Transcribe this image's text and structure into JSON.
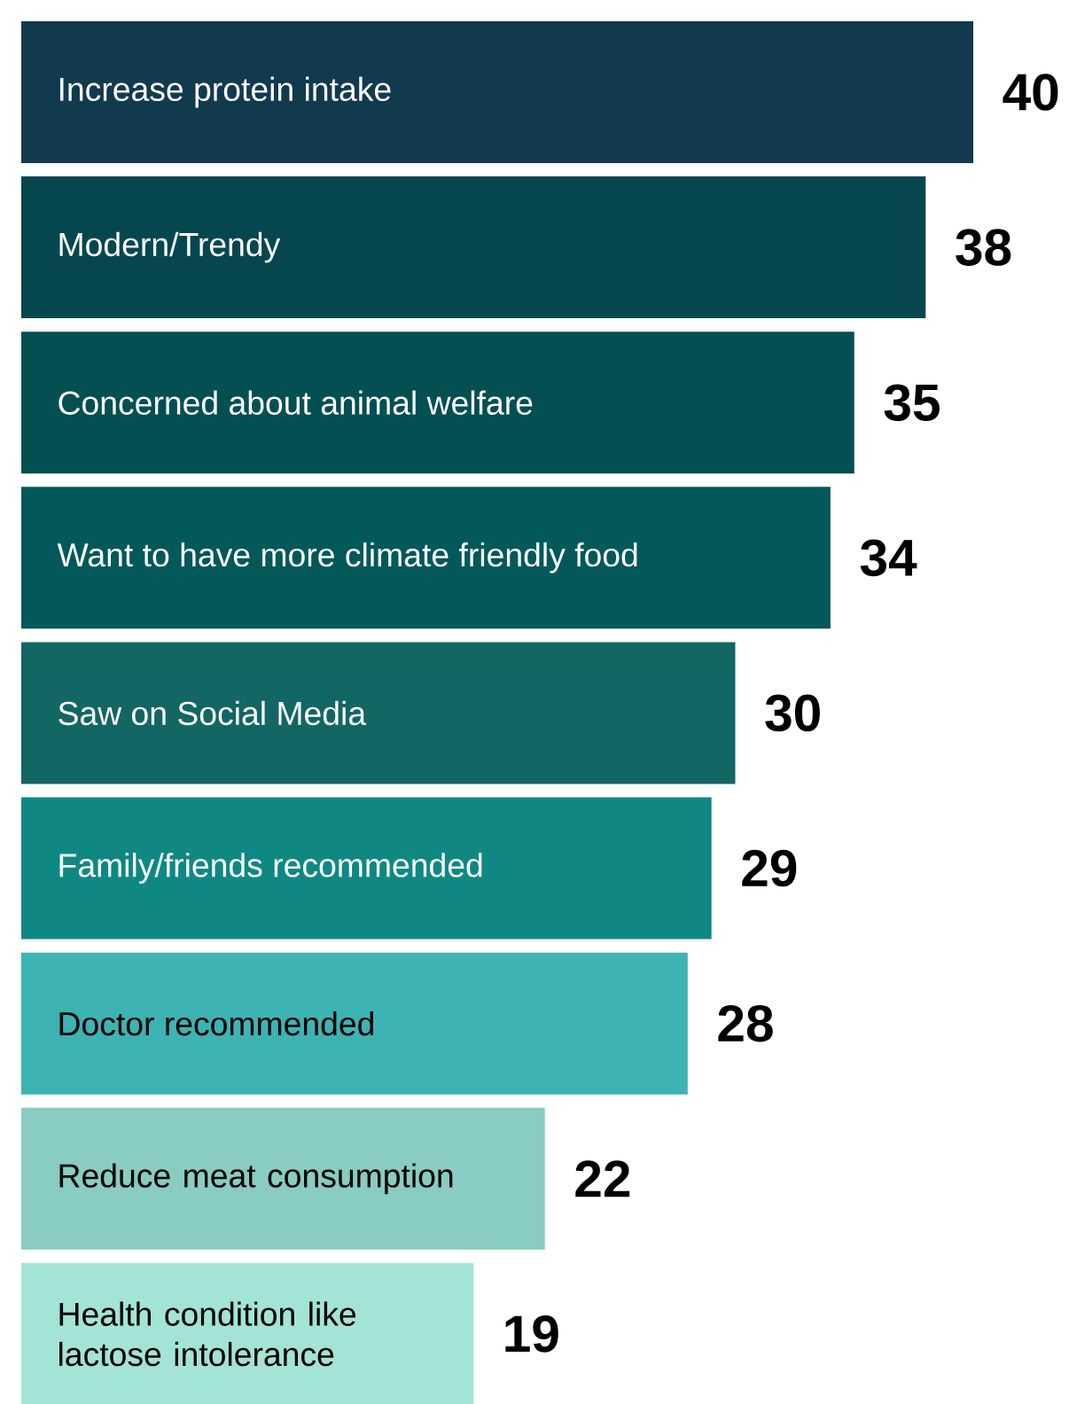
{
  "chart_data": {
    "type": "bar",
    "orientation": "horizontal",
    "data_labels": true,
    "categories": [
      "Increase protein intake",
      "Modern/Trendy",
      "Concerned about animal welfare",
      "Want to have more climate friendly food",
      "Saw on Social Media",
      "Family/friends recommended",
      "Doctor recommended",
      "Reduce meat consumption",
      "Health condition like lactose intolerance"
    ],
    "values": [
      40,
      38,
      35,
      34,
      30,
      29,
      28,
      22,
      19
    ],
    "colors": [
      "#123a4f",
      "#06474f",
      "#044f52",
      "#03585a",
      "#126663",
      "#0f8884",
      "#3eb3b3",
      "#88ccc3",
      "#a3e4d7"
    ]
  }
}
